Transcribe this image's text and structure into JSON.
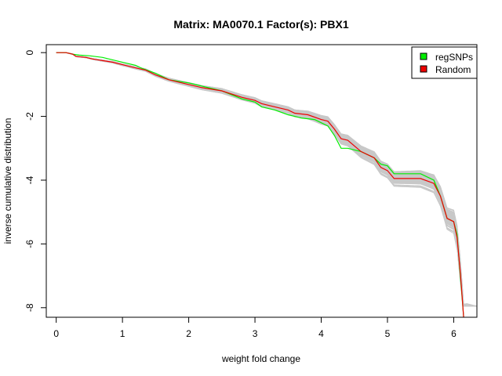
{
  "chart_data": {
    "type": "line",
    "title": "Matrix: MA0070.1 Factor(s): PBX1",
    "xlabel": "weight fold change",
    "ylabel": "inverse cumulative distribution",
    "xlim": [
      -0.15,
      6.35
    ],
    "ylim": [
      -8.3,
      0.25
    ],
    "x_ticks": [
      0,
      1,
      2,
      3,
      4,
      5,
      6
    ],
    "y_ticks": [
      0,
      -2,
      -4,
      -6,
      -8
    ],
    "grid": false,
    "legend_position": "top-right",
    "legend": [
      {
        "label": "regSNPs",
        "color": "#00ee00"
      },
      {
        "label": "Random",
        "color": "#ee0000"
      }
    ],
    "series": [
      {
        "name": "regSNPs",
        "color": "#00ee00",
        "x": [
          0,
          0.15,
          0.25,
          0.35,
          0.5,
          0.7,
          0.9,
          1.0,
          1.2,
          1.3,
          1.5,
          1.7,
          2.0,
          2.2,
          2.5,
          2.8,
          3.0,
          3.1,
          3.3,
          3.5,
          3.7,
          3.9,
          4.1,
          4.2,
          4.3,
          4.4,
          4.6,
          4.8,
          4.9,
          5.0,
          5.1,
          5.5,
          5.7,
          5.8,
          5.9,
          6.0,
          6.05,
          6.1,
          6.15
        ],
        "y": [
          0,
          0,
          -0.05,
          -0.08,
          -0.1,
          -0.15,
          -0.25,
          -0.3,
          -0.4,
          -0.5,
          -0.65,
          -0.85,
          -0.95,
          -1.05,
          -1.2,
          -1.45,
          -1.55,
          -1.7,
          -1.8,
          -1.95,
          -2.05,
          -2.1,
          -2.3,
          -2.6,
          -3.0,
          -3.0,
          -3.1,
          -3.3,
          -3.5,
          -3.55,
          -3.8,
          -3.8,
          -4.0,
          -4.5,
          -5.2,
          -5.3,
          -5.7,
          -7.0,
          -8.3
        ]
      },
      {
        "name": "Random",
        "color": "#ee0000",
        "x": [
          0,
          0.15,
          0.25,
          0.3,
          0.45,
          0.55,
          0.7,
          0.85,
          1.0,
          1.2,
          1.35,
          1.5,
          1.7,
          2.0,
          2.2,
          2.5,
          2.8,
          3.0,
          3.1,
          3.3,
          3.5,
          3.6,
          3.8,
          4.0,
          4.1,
          4.2,
          4.3,
          4.4,
          4.6,
          4.8,
          4.9,
          5.0,
          5.1,
          5.5,
          5.7,
          5.8,
          5.9,
          6.0,
          6.05,
          6.1,
          6.15
        ],
        "y": [
          0,
          0,
          -0.05,
          -0.12,
          -0.15,
          -0.2,
          -0.25,
          -0.3,
          -0.38,
          -0.48,
          -0.55,
          -0.7,
          -0.85,
          -1.0,
          -1.1,
          -1.2,
          -1.4,
          -1.5,
          -1.6,
          -1.7,
          -1.8,
          -1.9,
          -1.95,
          -2.1,
          -2.15,
          -2.4,
          -2.7,
          -2.75,
          -3.1,
          -3.3,
          -3.6,
          -3.7,
          -3.95,
          -3.95,
          -4.1,
          -4.5,
          -5.2,
          -5.3,
          -5.8,
          -6.9,
          -8.3
        ]
      }
    ]
  }
}
